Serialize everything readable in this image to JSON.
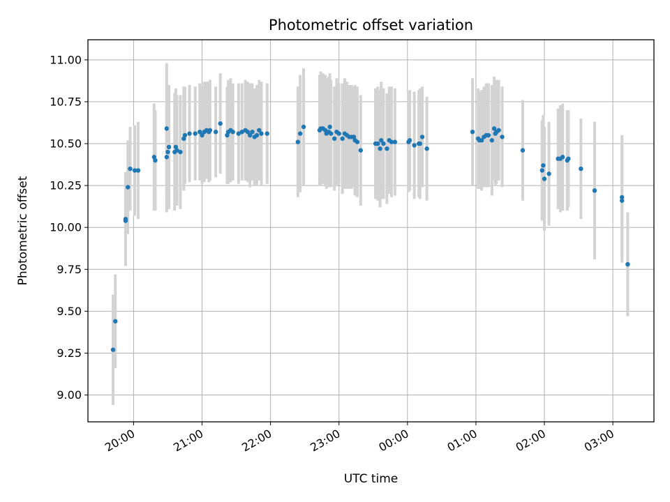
{
  "chart_data": {
    "type": "scatter",
    "title": "Photometric offset variation",
    "xlabel": "UTC time",
    "ylabel": "Photometric offset",
    "x_unit": "UTC time (HH:MM, data spans one night)",
    "xlim": [
      "19:20",
      "03:36"
    ],
    "ylim": [
      8.84,
      11.12
    ],
    "x_ticks": [
      "20:00",
      "21:00",
      "22:00",
      "23:00",
      "00:00",
      "01:00",
      "02:00",
      "03:00"
    ],
    "y_ticks": [
      "9.00",
      "9.25",
      "9.50",
      "9.75",
      "10.00",
      "10.25",
      "10.50",
      "10.75",
      "11.00"
    ],
    "grid": true,
    "point_color": "#1f77b4",
    "errorbar_color": "#d3d3d3",
    "series": [
      {
        "points": [
          {
            "x": "19:42",
            "y": 9.27,
            "err": 0.33
          },
          {
            "x": "19:44",
            "y": 9.44,
            "err": 0.28
          },
          {
            "x": "19:53",
            "y": 10.05,
            "err": 0.28
          },
          {
            "x": "19:53",
            "y": 10.04,
            "err": 0.27
          },
          {
            "x": "19:55",
            "y": 10.24,
            "err": 0.28
          },
          {
            "x": "19:57",
            "y": 10.35,
            "err": 0.25
          },
          {
            "x": "20:01",
            "y": 10.34,
            "err": 0.27
          },
          {
            "x": "20:04",
            "y": 10.34,
            "err": 0.29
          },
          {
            "x": "20:18",
            "y": 10.42,
            "err": 0.32
          },
          {
            "x": "20:19",
            "y": 10.4,
            "err": 0.3
          },
          {
            "x": "20:29",
            "y": 10.59,
            "err": 0.39
          },
          {
            "x": "20:29",
            "y": 10.42,
            "err": 0.33
          },
          {
            "x": "20:30",
            "y": 10.45,
            "err": 0.34
          },
          {
            "x": "20:31",
            "y": 10.48,
            "err": 0.37
          },
          {
            "x": "20:36",
            "y": 10.45,
            "err": 0.35
          },
          {
            "x": "20:37",
            "y": 10.48,
            "err": 0.35
          },
          {
            "x": "20:38",
            "y": 10.46,
            "err": 0.33
          },
          {
            "x": "20:41",
            "y": 10.45,
            "err": 0.34
          },
          {
            "x": "20:44",
            "y": 10.53,
            "err": 0.31
          },
          {
            "x": "20:45",
            "y": 10.55,
            "err": 0.29
          },
          {
            "x": "20:49",
            "y": 10.56,
            "err": 0.29
          },
          {
            "x": "20:54",
            "y": 10.56,
            "err": 0.28
          },
          {
            "x": "20:58",
            "y": 10.57,
            "err": 0.29
          },
          {
            "x": "21:00",
            "y": 10.55,
            "err": 0.29
          },
          {
            "x": "21:02",
            "y": 10.57,
            "err": 0.3
          },
          {
            "x": "21:04",
            "y": 10.58,
            "err": 0.29
          },
          {
            "x": "21:06",
            "y": 10.57,
            "err": 0.3
          },
          {
            "x": "21:07",
            "y": 10.58,
            "err": 0.3
          },
          {
            "x": "21:12",
            "y": 10.57,
            "err": 0.27
          },
          {
            "x": "21:16",
            "y": 10.62,
            "err": 0.3
          },
          {
            "x": "21:22",
            "y": 10.55,
            "err": 0.29
          },
          {
            "x": "21:23",
            "y": 10.57,
            "err": 0.31
          },
          {
            "x": "21:25",
            "y": 10.58,
            "err": 0.31
          },
          {
            "x": "21:27",
            "y": 10.57,
            "err": 0.29
          },
          {
            "x": "21:32",
            "y": 10.56,
            "err": 0.3
          },
          {
            "x": "21:35",
            "y": 10.57,
            "err": 0.29
          },
          {
            "x": "21:38",
            "y": 10.58,
            "err": 0.3
          },
          {
            "x": "21:40",
            "y": 10.57,
            "err": 0.3
          },
          {
            "x": "21:42",
            "y": 10.55,
            "err": 0.31
          },
          {
            "x": "21:44",
            "y": 10.57,
            "err": 0.29
          },
          {
            "x": "21:46",
            "y": 10.54,
            "err": 0.29
          },
          {
            "x": "21:48",
            "y": 10.55,
            "err": 0.3
          },
          {
            "x": "21:50",
            "y": 10.58,
            "err": 0.3
          },
          {
            "x": "21:52",
            "y": 10.56,
            "err": 0.31
          },
          {
            "x": "21:57",
            "y": 10.56,
            "err": 0.3
          },
          {
            "x": "22:24",
            "y": 10.51,
            "err": 0.33
          },
          {
            "x": "22:26",
            "y": 10.56,
            "err": 0.35
          },
          {
            "x": "22:29",
            "y": 10.6,
            "err": 0.35
          },
          {
            "x": "22:43",
            "y": 10.58,
            "err": 0.33
          },
          {
            "x": "22:44",
            "y": 10.59,
            "err": 0.34
          },
          {
            "x": "22:46",
            "y": 10.59,
            "err": 0.33
          },
          {
            "x": "22:48",
            "y": 10.58,
            "err": 0.33
          },
          {
            "x": "22:49",
            "y": 10.56,
            "err": 0.33
          },
          {
            "x": "22:51",
            "y": 10.57,
            "err": 0.33
          },
          {
            "x": "22:52",
            "y": 10.6,
            "err": 0.32
          },
          {
            "x": "22:53",
            "y": 10.56,
            "err": 0.32
          },
          {
            "x": "22:56",
            "y": 10.53,
            "err": 0.31
          },
          {
            "x": "22:58",
            "y": 10.57,
            "err": 0.32
          },
          {
            "x": "23:00",
            "y": 10.56,
            "err": 0.3
          },
          {
            "x": "23:03",
            "y": 10.53,
            "err": 0.33
          },
          {
            "x": "23:05",
            "y": 10.56,
            "err": 0.33
          },
          {
            "x": "23:07",
            "y": 10.55,
            "err": 0.32
          },
          {
            "x": "23:09",
            "y": 10.54,
            "err": 0.31
          },
          {
            "x": "23:11",
            "y": 10.54,
            "err": 0.31
          },
          {
            "x": "23:13",
            "y": 10.54,
            "err": 0.3
          },
          {
            "x": "23:14",
            "y": 10.52,
            "err": 0.33
          },
          {
            "x": "23:16",
            "y": 10.51,
            "err": 0.33
          },
          {
            "x": "23:19",
            "y": 10.46,
            "err": 0.33
          },
          {
            "x": "23:32",
            "y": 10.5,
            "err": 0.33
          },
          {
            "x": "23:34",
            "y": 10.5,
            "err": 0.34
          },
          {
            "x": "23:36",
            "y": 10.47,
            "err": 0.35
          },
          {
            "x": "23:37",
            "y": 10.52,
            "err": 0.35
          },
          {
            "x": "23:39",
            "y": 10.5,
            "err": 0.33
          },
          {
            "x": "23:42",
            "y": 10.47,
            "err": 0.33
          },
          {
            "x": "23:44",
            "y": 10.52,
            "err": 0.32
          },
          {
            "x": "23:46",
            "y": 10.51,
            "err": 0.33
          },
          {
            "x": "23:49",
            "y": 10.51,
            "err": 0.32
          },
          {
            "x": "00:01",
            "y": 10.51,
            "err": 0.3
          },
          {
            "x": "00:02",
            "y": 10.52,
            "err": 0.3
          },
          {
            "x": "00:06",
            "y": 10.49,
            "err": 0.32
          },
          {
            "x": "00:10",
            "y": 10.5,
            "err": 0.32
          },
          {
            "x": "00:11",
            "y": 10.5,
            "err": 0.33
          },
          {
            "x": "00:13",
            "y": 10.54,
            "err": 0.3
          },
          {
            "x": "00:17",
            "y": 10.47,
            "err": 0.31
          },
          {
            "x": "00:57",
            "y": 10.57,
            "err": 0.32
          },
          {
            "x": "01:02",
            "y": 10.53,
            "err": 0.3
          },
          {
            "x": "01:03",
            "y": 10.52,
            "err": 0.29
          },
          {
            "x": "01:05",
            "y": 10.52,
            "err": 0.3
          },
          {
            "x": "01:07",
            "y": 10.54,
            "err": 0.3
          },
          {
            "x": "01:09",
            "y": 10.55,
            "err": 0.31
          },
          {
            "x": "01:11",
            "y": 10.55,
            "err": 0.31
          },
          {
            "x": "01:14",
            "y": 10.52,
            "err": 0.33
          },
          {
            "x": "01:16",
            "y": 10.59,
            "err": 0.31
          },
          {
            "x": "01:17",
            "y": 10.56,
            "err": 0.31
          },
          {
            "x": "01:18",
            "y": 10.57,
            "err": 0.31
          },
          {
            "x": "01:20",
            "y": 10.58,
            "err": 0.3
          },
          {
            "x": "01:23",
            "y": 10.54,
            "err": 0.3
          },
          {
            "x": "01:41",
            "y": 10.46,
            "err": 0.3
          },
          {
            "x": "01:58",
            "y": 10.34,
            "err": 0.3
          },
          {
            "x": "01:59",
            "y": 10.37,
            "err": 0.3
          },
          {
            "x": "02:00",
            "y": 10.29,
            "err": 0.31
          },
          {
            "x": "02:04",
            "y": 10.32,
            "err": 0.31
          },
          {
            "x": "02:12",
            "y": 10.41,
            "err": 0.3
          },
          {
            "x": "02:14",
            "y": 10.41,
            "err": 0.32
          },
          {
            "x": "02:16",
            "y": 10.42,
            "err": 0.32
          },
          {
            "x": "02:20",
            "y": 10.4,
            "err": 0.3
          },
          {
            "x": "02:21",
            "y": 10.41,
            "err": 0.29
          },
          {
            "x": "02:32",
            "y": 10.35,
            "err": 0.3
          },
          {
            "x": "02:44",
            "y": 10.22,
            "err": 0.41
          },
          {
            "x": "03:08",
            "y": 10.18,
            "err": 0.37
          },
          {
            "x": "03:08",
            "y": 10.16,
            "err": 0.37
          },
          {
            "x": "03:13",
            "y": 9.78,
            "err": 0.31
          }
        ]
      }
    ]
  }
}
